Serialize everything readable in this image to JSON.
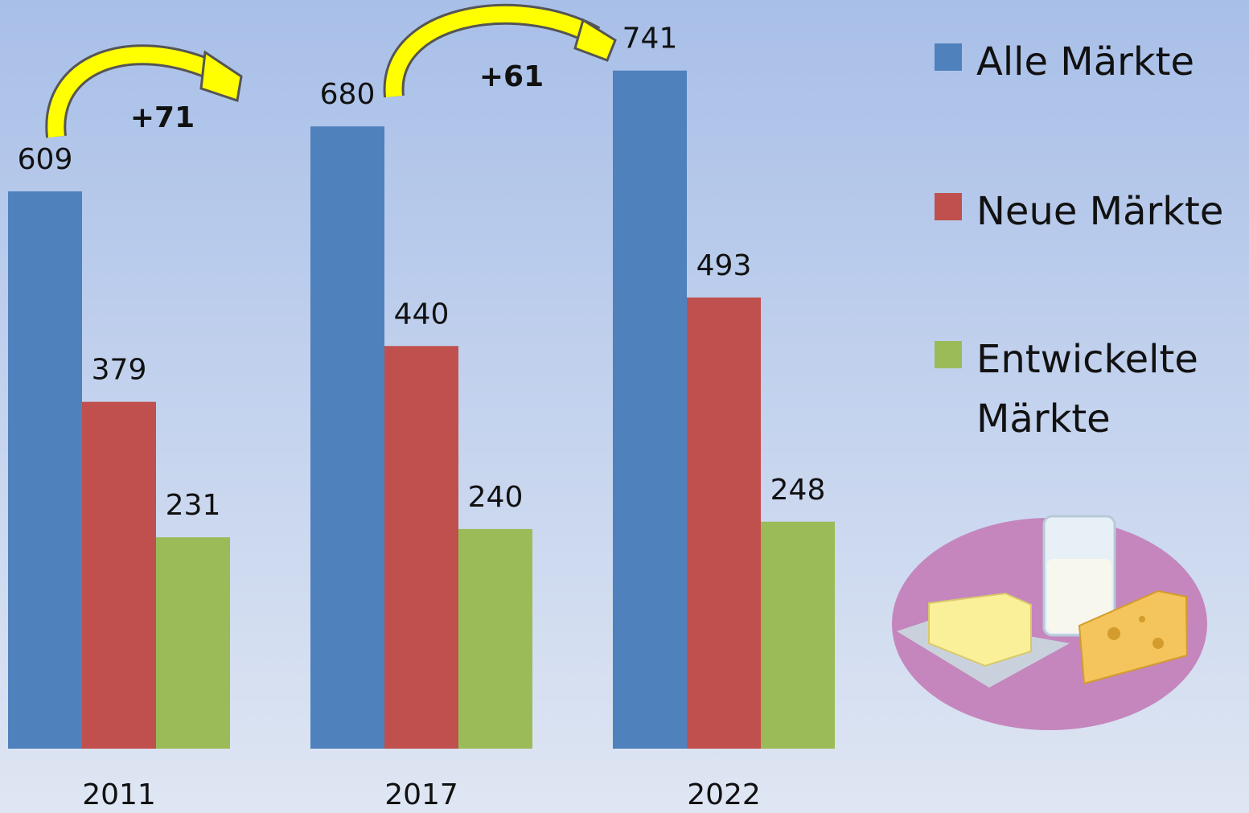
{
  "chart_data": {
    "type": "bar",
    "categories": [
      "2011",
      "2017",
      "2022"
    ],
    "series": [
      {
        "name": "Alle Märkte",
        "color": "#4f81bd",
        "values": [
          609,
          680,
          741
        ]
      },
      {
        "name": "Neue Märkte",
        "color": "#c0504d",
        "values": [
          379,
          440,
          493
        ]
      },
      {
        "name": "Entwickelte Märkte",
        "color": "#9bbb59",
        "values": [
          231,
          240,
          248
        ]
      }
    ],
    "annotations": [
      "+71",
      "+61"
    ]
  }
}
